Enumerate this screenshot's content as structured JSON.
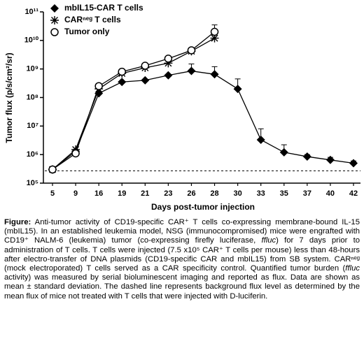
{
  "chart_data": {
    "type": "line",
    "x_label": "Days post-tumor injection",
    "y_label": "Tumor flux (p/s/cm²/sr)",
    "categories": [
      5,
      9,
      16,
      19,
      21,
      23,
      26,
      28,
      30,
      33,
      35,
      37,
      40,
      42
    ],
    "log_scale": true,
    "ylim": [
      100000,
      100000000000
    ],
    "yticks": [
      {
        "value": 100000,
        "label": "10⁵"
      },
      {
        "value": 1000000,
        "label": "10⁶"
      },
      {
        "value": 10000000,
        "label": "10⁷"
      },
      {
        "value": 100000000,
        "label": "10⁸"
      },
      {
        "value": 1000000000,
        "label": "10⁹"
      },
      {
        "value": 10000000000,
        "label": "10¹⁰"
      },
      {
        "value": 100000000000,
        "label": "10¹¹"
      }
    ],
    "reference_line": 270000,
    "legend": "top-left",
    "series": [
      {
        "name": "mbIL15-CAR T cells",
        "color": "#000000",
        "marker": "diamond",
        "values": [
          300000,
          1300000,
          140000000,
          350000000,
          400000000,
          600000000,
          850000000,
          650000000,
          200000000,
          3300000,
          1200000,
          850000,
          650000,
          500000
        ],
        "errors": [
          null,
          null,
          null,
          null,
          null,
          null,
          650000000,
          550000000,
          250000000,
          4700000,
          1000000,
          150000,
          150000,
          100000
        ]
      },
      {
        "name": "CARⁿᵉᵍ T cells",
        "color": "#000000",
        "marker": "asterisk",
        "values": [
          300000,
          1500000,
          200000000,
          700000000,
          1100000000,
          1600000000,
          4200000000,
          12000000000,
          null,
          null,
          null,
          null,
          null,
          null
        ]
      },
      {
        "name": "Tumor only",
        "color": "#000000",
        "marker": "circle-open",
        "values": [
          300000,
          1100000,
          250000000,
          800000000,
          1300000000,
          2300000000,
          4500000000,
          20000000000,
          null,
          null,
          null,
          null,
          null,
          null
        ],
        "errors": [
          null,
          null,
          null,
          null,
          null,
          null,
          null,
          15000000000,
          null,
          null,
          null,
          null,
          null,
          null
        ]
      }
    ]
  },
  "caption_label": "Figure:",
  "caption": [
    {
      "text": " Anti-tumor activity of CD19-specific CAR⁺ T cells co-expressing membrane-bound IL-15 (mbIL15). In an established leukemia model, NSG (immunocompromised) mice were engrafted with CD19⁺ NALM-6 (leukemia) tumor (co-expressing firefly luciferase, ",
      "style": "normal"
    },
    {
      "text": "ffluc",
      "style": "italic"
    },
    {
      "text": ") for 7 days prior to administration of T cells. T cells were injected (7.5 x10⁵ CAR⁺ T cells per mouse) less than 48-hours after electro-transfer of DNA plasmids (CD19-specific CAR and mbIL15) from SB system. CARⁿᵉᵍ (mock electroporated) T cells served as a CAR specificity control. Quantified tumor burden (",
      "style": "normal"
    },
    {
      "text": "ffluc",
      "style": "italic"
    },
    {
      "text": " activity) was measured by serial bioluminescent imaging and reported as flux. Data are shown as mean ± standard deviation. The dashed line represents background flux level as determined by the mean flux of mice not treated with T cells that were injected with D-luciferin.",
      "style": "normal"
    }
  ]
}
